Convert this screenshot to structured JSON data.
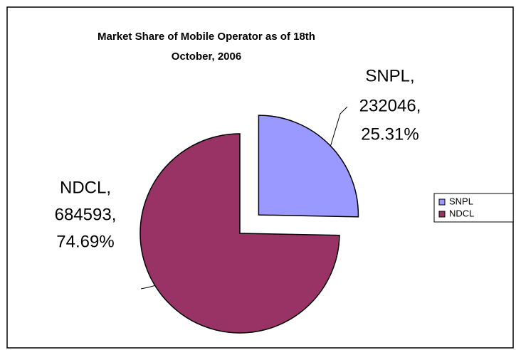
{
  "chart_data": {
    "type": "pie",
    "title": [
      "Market Share of Mobile Operator as of 18th",
      "October, 2006"
    ],
    "categories": [
      "SNPL",
      "NDCL"
    ],
    "values": [
      25.31,
      74.69
    ],
    "value_labels": [
      [
        "SNPL,",
        "232046,",
        "25.31%"
      ],
      [
        "NDCL,",
        "684593,",
        "74.69%"
      ]
    ],
    "colors": [
      "#9999ff",
      "#993366"
    ],
    "explode": [
      true,
      false
    ],
    "legend": "right"
  }
}
